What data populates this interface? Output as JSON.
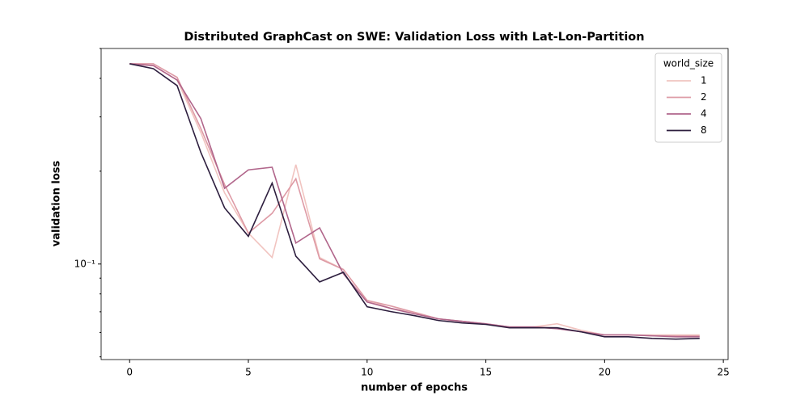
{
  "chart_data": {
    "type": "line",
    "title": "Distributed GraphCast on SWE: Validation Loss with Lat-Lon-Partition",
    "xlabel": "number of epochs",
    "ylabel": "validation loss",
    "log_y": true,
    "x": [
      0,
      1,
      2,
      3,
      4,
      5,
      6,
      7,
      8,
      9,
      10,
      11,
      12,
      13,
      14,
      15,
      16,
      17,
      18,
      19,
      20,
      21,
      22,
      23,
      24
    ],
    "xlim": [
      -1.2,
      25.2
    ],
    "xticks": [
      0,
      5,
      10,
      15,
      20,
      25
    ],
    "ylim": [
      0.049,
      0.5
    ],
    "yticks": [
      {
        "value": 0.1,
        "label": "10⁻¹"
      }
    ],
    "yminorticks": [
      0.05,
      0.06,
      0.07,
      0.08,
      0.09,
      0.2,
      0.3,
      0.4,
      0.5
    ],
    "legend_title": "world_size",
    "legend": "upper right",
    "series": [
      {
        "name": "1",
        "color": "#f1c4c0",
        "values": [
          0.446,
          0.44,
          0.395,
          0.267,
          0.17,
          0.126,
          0.105,
          0.21,
          0.105,
          0.096,
          0.0762,
          0.0718,
          0.0697,
          0.0664,
          0.0652,
          0.064,
          0.0621,
          0.0625,
          0.064,
          0.061,
          0.0589,
          0.0589,
          0.0589,
          0.0589,
          0.0589
        ]
      },
      {
        "name": "2",
        "color": "#de9ba6",
        "values": [
          0.446,
          0.446,
          0.403,
          0.275,
          0.181,
          0.126,
          0.146,
          0.189,
          0.104,
          0.096,
          0.0762,
          0.0731,
          0.0697,
          0.0664,
          0.0652,
          0.064,
          0.0625,
          0.0625,
          0.0621,
          0.0603,
          0.0589,
          0.0589,
          0.0585,
          0.0585,
          0.0585
        ]
      },
      {
        "name": "4",
        "color": "#b1668b",
        "values": [
          0.446,
          0.44,
          0.395,
          0.296,
          0.176,
          0.202,
          0.206,
          0.117,
          0.131,
          0.093,
          0.0753,
          0.0718,
          0.0689,
          0.0664,
          0.0652,
          0.064,
          0.0625,
          0.0625,
          0.0617,
          0.0603,
          0.0589,
          0.0589,
          0.0585,
          0.0581,
          0.0581
        ]
      },
      {
        "name": "8",
        "color": "#2d1e3e",
        "values": [
          0.446,
          0.43,
          0.379,
          0.23,
          0.152,
          0.123,
          0.183,
          0.106,
          0.0875,
          0.094,
          0.0727,
          0.0701,
          0.068,
          0.0656,
          0.0644,
          0.0637,
          0.0621,
          0.0621,
          0.0621,
          0.0603,
          0.0581,
          0.0581,
          0.0574,
          0.0571,
          0.0574
        ]
      }
    ]
  }
}
